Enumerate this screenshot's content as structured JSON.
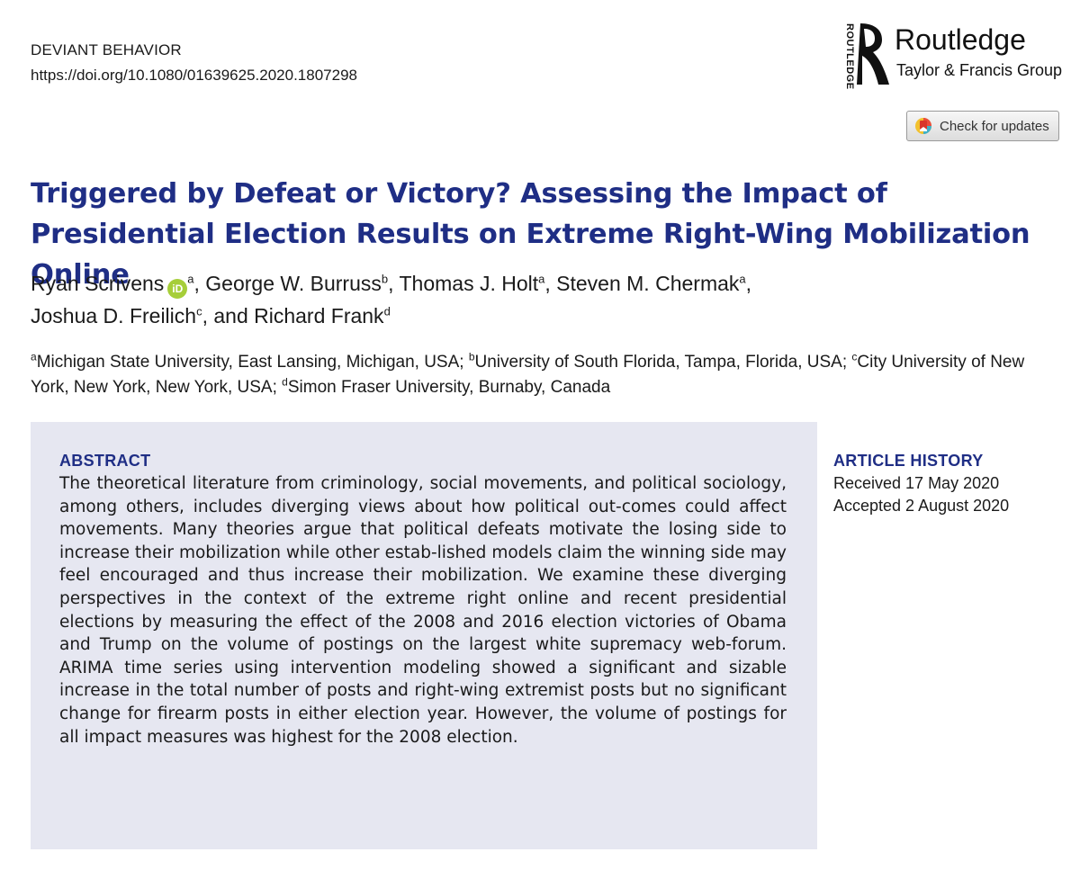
{
  "header": {
    "journal": "DEVIANT BEHAVIOR",
    "doi": "https://doi.org/10.1080/01639625.2020.1807298"
  },
  "publisher": {
    "vertical_text": "ROUTLEDGE",
    "name": "Routledge",
    "group": "Taylor & Francis Group",
    "logo_icon": "routledge-head-icon"
  },
  "updates_button": {
    "label": "Check for updates",
    "icon": "crossmark-icon"
  },
  "title": "Triggered by Defeat or Victory? Assessing the Impact of Presidential Election Results on Extreme Right-Wing Mobilization Online",
  "authors": [
    {
      "name": "Ryan Scrivens",
      "sup": "a",
      "orcid": "iD"
    },
    {
      "name": "George W. Burruss",
      "sup": "b"
    },
    {
      "name": "Thomas J. Holt",
      "sup": "a"
    },
    {
      "name": "Steven M. Chermak",
      "sup": "a"
    },
    {
      "name": "Joshua D. Freilich",
      "sup": "c"
    },
    {
      "name": "Richard Frank",
      "sup": "d"
    }
  ],
  "author_separators": {
    "comma": ",",
    "and": "and"
  },
  "affiliations": [
    {
      "sup": "a",
      "text": "Michigan State University, East Lansing, Michigan, USA; "
    },
    {
      "sup": "b",
      "text": "University of South Florida, Tampa, Florida, USA; "
    },
    {
      "sup": "c",
      "text": "City University of New York, New York, New York, USA; "
    },
    {
      "sup": "d",
      "text": "Simon Fraser University, Burnaby, Canada"
    }
  ],
  "abstract": {
    "heading": "ABSTRACT",
    "text": "The theoretical literature from criminology, social movements, and political sociology, among others, includes diverging views about how political out-comes could affect movements. Many theories argue that political defeats motivate the losing side to increase their mobilization while other estab-lished models claim the winning side may feel encouraged and thus increase their mobilization. We examine these diverging perspectives in the context of the extreme right online and recent presidential elections by measuring the effect of the 2008 and 2016 election victories of Obama and Trump on the volume of postings on the largest white supremacy web-forum. ARIMA time series using intervention modeling showed a significant and sizable increase in the total number of posts and right-wing extremist posts but no significant change for firearm posts in either election year. However, the volume of postings for all impact measures was highest for the 2008 election."
  },
  "article_history": {
    "heading": "ARTICLE HISTORY",
    "received": "Received 17 May 2020",
    "accepted": "Accepted 2 August 2020"
  },
  "colors": {
    "title_blue": "#1f2e85",
    "abstract_bg": "#e6e7f1",
    "orcid_green": "#a6ce39"
  }
}
